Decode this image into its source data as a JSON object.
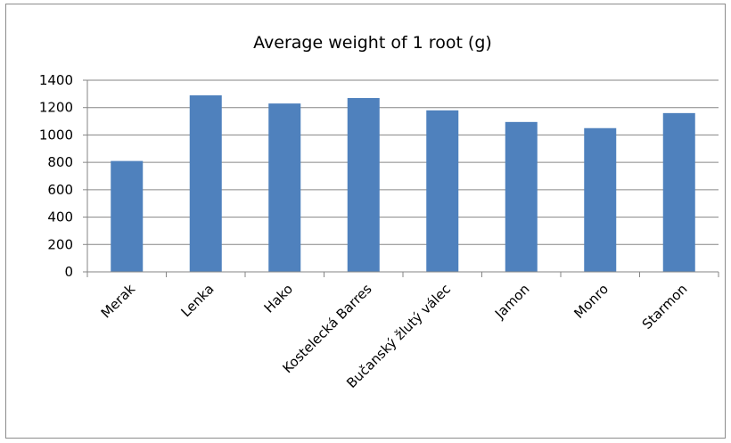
{
  "chart_data": {
    "type": "bar",
    "title": "Average weight of 1 root (g)",
    "xlabel": "",
    "ylabel": "",
    "categories": [
      "Merak",
      "Lenka",
      "Hako",
      "Kostelecká Barres",
      "Bučanský žlutý válec",
      "Jamon",
      "Monro",
      "Starmon"
    ],
    "values": [
      810,
      1290,
      1230,
      1270,
      1180,
      1095,
      1050,
      1160
    ],
    "ylim": [
      0,
      1400
    ],
    "yticks": [
      0,
      200,
      400,
      600,
      800,
      1000,
      1200,
      1400
    ],
    "grid": true,
    "legend": "none",
    "bar_color": "#4f81bd"
  }
}
